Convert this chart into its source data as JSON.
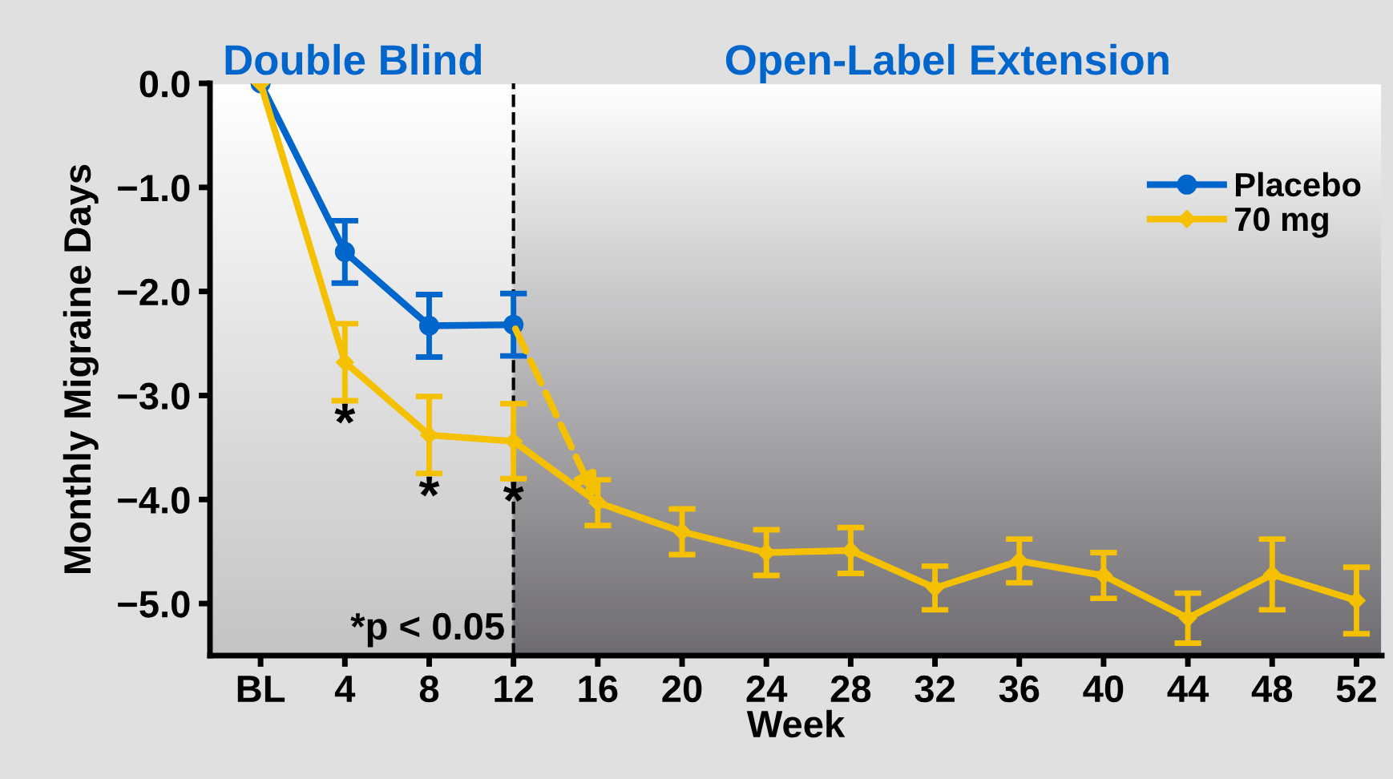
{
  "chart_data": {
    "type": "line",
    "xlabel": "Week",
    "ylabel": "Monthly Migraine Days",
    "categories": [
      "BL",
      "4",
      "8",
      "12",
      "16",
      "20",
      "24",
      "28",
      "32",
      "36",
      "40",
      "44",
      "48",
      "52"
    ],
    "series": [
      {
        "name": "Placebo",
        "color": "#0066cc",
        "marker": "circle",
        "values": [
          0.0,
          -1.62,
          -2.33,
          -2.32,
          null,
          null,
          null,
          null,
          null,
          null,
          null,
          null,
          null,
          null
        ],
        "errors": [
          null,
          0.3,
          0.3,
          0.3,
          null,
          null,
          null,
          null,
          null,
          null,
          null,
          null,
          null,
          null
        ]
      },
      {
        "name": "70 mg",
        "color": "#f5c000",
        "marker": "diamond",
        "values": [
          0.0,
          -2.68,
          -3.38,
          -3.44,
          -4.03,
          -4.31,
          -4.51,
          -4.49,
          -4.85,
          -4.59,
          -4.73,
          -5.14,
          -4.72,
          -4.97
        ],
        "errors": [
          null,
          0.37,
          0.37,
          0.36,
          0.22,
          0.22,
          0.22,
          0.22,
          0.21,
          0.21,
          0.22,
          0.24,
          0.34,
          0.32
        ]
      }
    ],
    "ylim": [
      -5.5,
      0.0
    ],
    "yticks": [
      {
        "value": 0,
        "label": "0.0"
      },
      {
        "value": -1,
        "label": "−1.0"
      },
      {
        "value": -2,
        "label": "−2.0"
      },
      {
        "value": -3,
        "label": "−3.0"
      },
      {
        "value": -4,
        "label": "−4.0"
      },
      {
        "value": -5,
        "label": "−5.0"
      }
    ],
    "ref_lines": [
      {
        "axis": "x",
        "value": "12",
        "color": "#000000",
        "line_style": "dashed"
      }
    ],
    "annotations": [
      "Double Blind",
      "Open-Label Extension",
      "*",
      "*",
      "*",
      "*p < 0.05"
    ],
    "legend": "top right",
    "grid": false
  }
}
